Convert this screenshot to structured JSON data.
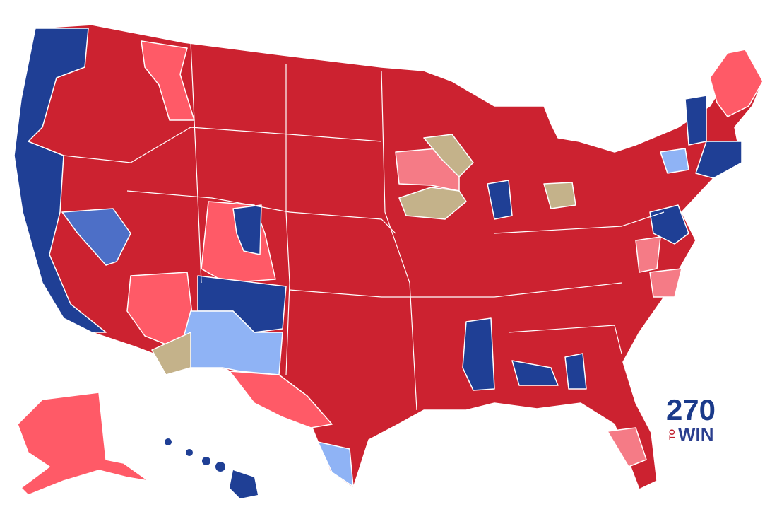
{
  "logo": {
    "number": "270",
    "to": "TO",
    "win": "WIN"
  }
}
